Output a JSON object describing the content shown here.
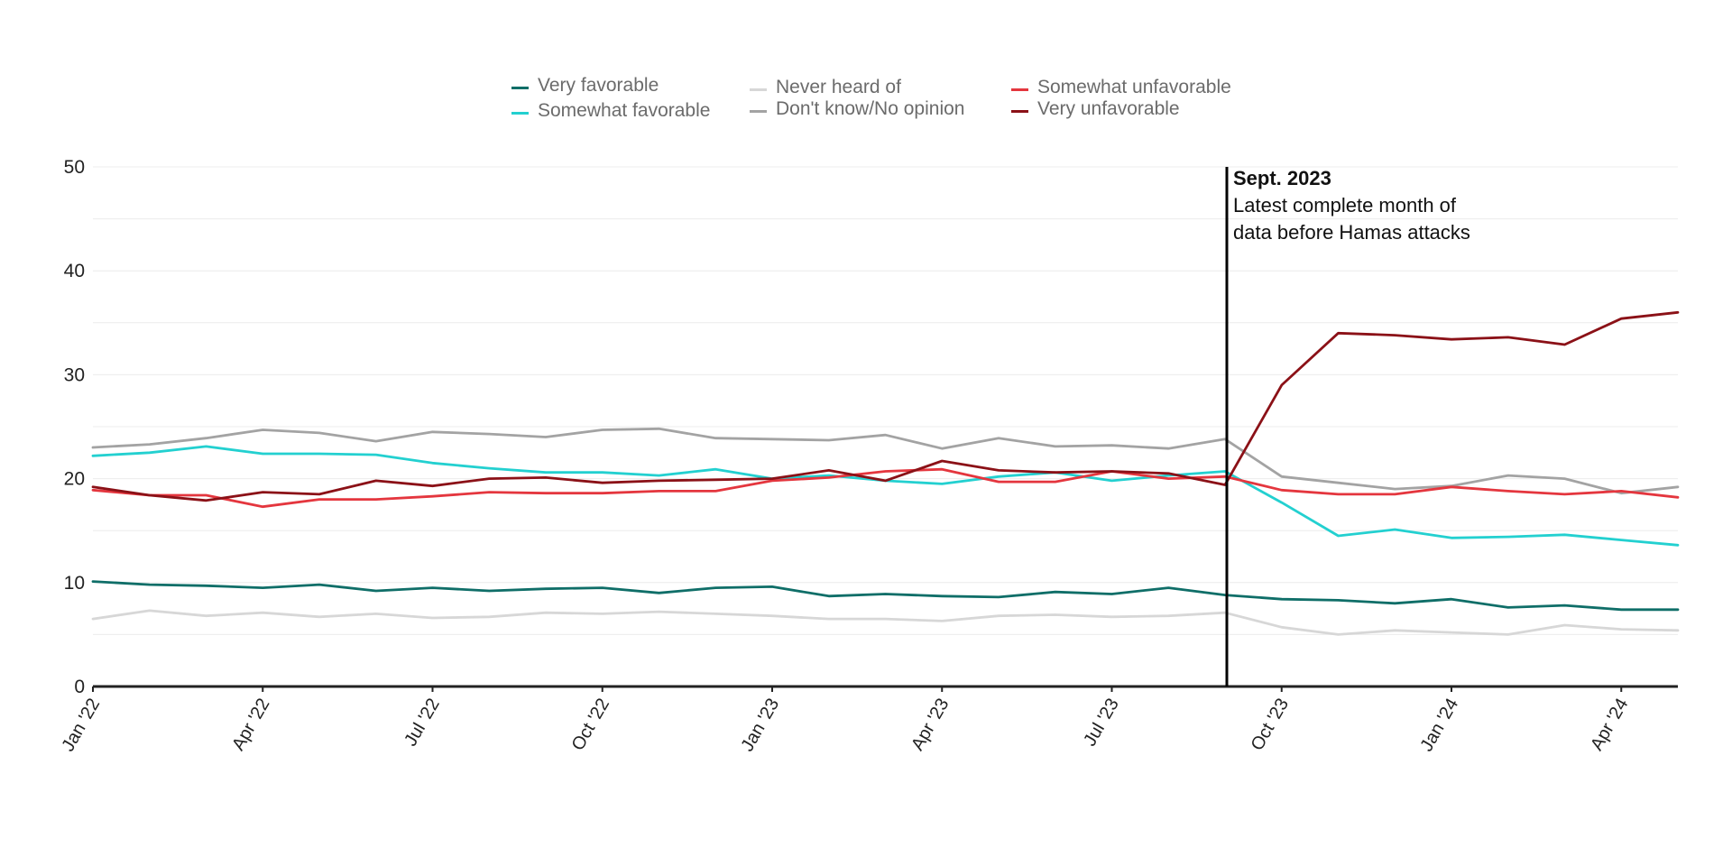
{
  "chart_data": {
    "type": "line",
    "title": "",
    "xlabel": "",
    "ylabel": "",
    "ylim": [
      0,
      50
    ],
    "yticks": [
      0,
      10,
      20,
      30,
      40,
      50
    ],
    "grid": true,
    "legend_position": "top",
    "x": [
      "Jan '22",
      "Feb '22",
      "Mar '22",
      "Apr '22",
      "May '22",
      "Jun '22",
      "Jul '22",
      "Aug '22",
      "Sep '22",
      "Oct '22",
      "Nov '22",
      "Dec '22",
      "Jan '23",
      "Feb '23",
      "Mar '23",
      "Apr '23",
      "May '23",
      "Jun '23",
      "Jul '23",
      "Aug '23",
      "Sep '23",
      "Oct '23",
      "Nov '23",
      "Dec '23",
      "Jan '24",
      "Feb '24",
      "Mar '24",
      "Apr '24",
      "May '24"
    ],
    "x_tick_labels": [
      "Jan '22",
      "Apr '22",
      "Jul '22",
      "Oct '22",
      "Jan '23",
      "Apr '23",
      "Jul '23",
      "Oct '23",
      "Jan '24",
      "Apr '24"
    ],
    "series": [
      {
        "name": "Very favorable",
        "color": "#0f6e68",
        "values": [
          10.1,
          9.8,
          9.7,
          9.5,
          9.8,
          9.2,
          9.5,
          9.2,
          9.4,
          9.5,
          9.0,
          9.5,
          9.6,
          8.7,
          8.9,
          8.7,
          8.6,
          9.1,
          8.9,
          9.5,
          8.8,
          8.4,
          8.3,
          8.0,
          8.4,
          7.6,
          7.8,
          7.4,
          7.4
        ]
      },
      {
        "name": "Somewhat favorable",
        "color": "#23d0d0",
        "values": [
          22.2,
          22.5,
          23.1,
          22.4,
          22.4,
          22.3,
          21.5,
          21.0,
          20.6,
          20.6,
          20.3,
          20.9,
          20.0,
          20.3,
          19.8,
          19.5,
          20.2,
          20.6,
          19.8,
          20.3,
          20.7,
          17.7,
          14.5,
          15.1,
          14.3,
          14.4,
          14.6,
          14.1,
          13.6
        ]
      },
      {
        "name": "Never heard of",
        "color": "#d7d7d7",
        "values": [
          6.5,
          7.3,
          6.8,
          7.1,
          6.7,
          7.0,
          6.6,
          6.7,
          7.1,
          7.0,
          7.2,
          7.0,
          6.8,
          6.5,
          6.5,
          6.3,
          6.8,
          6.9,
          6.7,
          6.8,
          7.1,
          5.7,
          5.0,
          5.4,
          5.2,
          5.0,
          5.9,
          5.5,
          5.4
        ]
      },
      {
        "name": "Don't know/No opinion",
        "color": "#a3a3a3",
        "values": [
          23.0,
          23.3,
          23.9,
          24.7,
          24.4,
          23.6,
          24.5,
          24.3,
          24.0,
          24.7,
          24.8,
          23.9,
          23.8,
          23.7,
          24.2,
          22.9,
          23.9,
          23.1,
          23.2,
          22.9,
          23.8,
          20.2,
          19.6,
          19.0,
          19.3,
          20.3,
          20.0,
          18.6,
          19.2
        ]
      },
      {
        "name": "Somewhat unfavorable",
        "color": "#e4363e",
        "values": [
          18.9,
          18.4,
          18.4,
          17.3,
          18.0,
          18.0,
          18.3,
          18.7,
          18.6,
          18.6,
          18.8,
          18.8,
          19.8,
          20.1,
          20.7,
          20.9,
          19.7,
          19.7,
          20.7,
          20.0,
          20.2,
          18.9,
          18.5,
          18.5,
          19.2,
          18.8,
          18.5,
          18.8,
          18.2
        ]
      },
      {
        "name": "Very unfavorable",
        "color": "#8b1117",
        "values": [
          19.2,
          18.4,
          17.9,
          18.7,
          18.5,
          19.8,
          19.3,
          20.0,
          20.1,
          19.6,
          19.8,
          19.9,
          20.0,
          20.8,
          19.8,
          21.7,
          20.8,
          20.6,
          20.7,
          20.5,
          19.4,
          29.0,
          34.0,
          33.8,
          33.4,
          33.6,
          32.9,
          35.4,
          36.0
        ]
      }
    ],
    "annotation": {
      "x": "Sep '23",
      "title": "Sept. 2023",
      "line1": "Latest complete month of",
      "line2": "data before Hamas attacks"
    }
  }
}
